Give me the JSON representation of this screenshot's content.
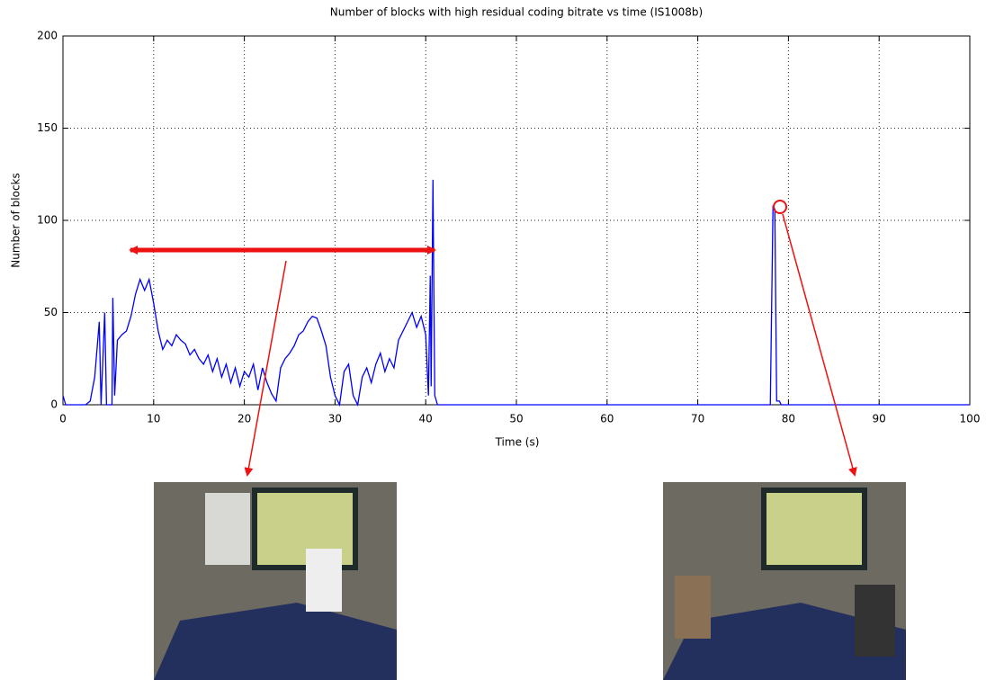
{
  "chart_data": {
    "type": "line",
    "title": "Number of blocks with high residual coding bitrate vs time (IS1008b)",
    "x_label": "Time (s)",
    "y_label": "Number of blocks",
    "xlim": [
      0,
      100
    ],
    "ylim": [
      0,
      200
    ],
    "xticks": [
      0,
      10,
      20,
      30,
      40,
      50,
      60,
      70,
      80,
      90,
      100
    ],
    "yticks": [
      0,
      50,
      100,
      150,
      200
    ],
    "grid": true,
    "series": [
      {
        "color": "#0000ff",
        "x": [
          0,
          0.3,
          2.5,
          3,
          3.5,
          4,
          4.2,
          4.6,
          4.8,
          5.4,
          5.5,
          5.7,
          6,
          6.5,
          7,
          7.5,
          8,
          8.5,
          9,
          9.5,
          10,
          10.5,
          11,
          11.5,
          12,
          12.5,
          13,
          13.5,
          14,
          14.5,
          15,
          15.5,
          16,
          16.5,
          17,
          17.5,
          18,
          18.5,
          19,
          19.5,
          20,
          20.5,
          21,
          21.5,
          22,
          22.5,
          23,
          23.5,
          24,
          24.5,
          25,
          25.5,
          26,
          26.5,
          27,
          27.5,
          28,
          28.5,
          29,
          29.5,
          30,
          30.5,
          31,
          31.5,
          32,
          32.5,
          33,
          33.5,
          34,
          34.5,
          35,
          35.5,
          36,
          36.5,
          37,
          37.5,
          38,
          38.5,
          39,
          39.5,
          40,
          40.3,
          40.5,
          40.6,
          40.8,
          40.9,
          41,
          41.3,
          78,
          78.3,
          78.5,
          78.7,
          79,
          79.2,
          100
        ],
        "values": [
          5,
          0,
          0,
          2,
          15,
          45,
          0,
          50,
          0,
          0,
          58,
          5,
          35,
          38,
          40,
          48,
          60,
          68,
          62,
          68,
          55,
          40,
          30,
          35,
          32,
          38,
          35,
          33,
          27,
          30,
          25,
          22,
          27,
          18,
          25,
          15,
          22,
          12,
          20,
          10,
          18,
          15,
          22,
          8,
          20,
          12,
          6,
          2,
          20,
          25,
          28,
          32,
          38,
          40,
          45,
          48,
          47,
          40,
          32,
          15,
          5,
          0,
          18,
          22,
          5,
          0,
          15,
          20,
          12,
          22,
          28,
          18,
          25,
          20,
          35,
          40,
          45,
          50,
          42,
          48,
          38,
          5,
          70,
          10,
          122,
          60,
          5,
          0,
          0,
          108,
          106,
          2,
          2,
          0,
          0
        ]
      }
    ]
  }
}
